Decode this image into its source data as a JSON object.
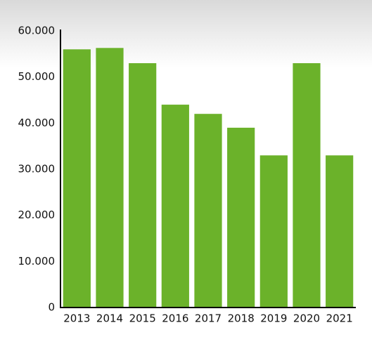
{
  "chart_data": {
    "type": "bar",
    "categories": [
      "2013",
      "2014",
      "2015",
      "2016",
      "2017",
      "2018",
      "2019",
      "2020",
      "2021"
    ],
    "values": [
      56000,
      56300,
      53000,
      44000,
      42000,
      39000,
      33000,
      53000,
      33000
    ],
    "color": "#6bb22a",
    "ylim": [
      0,
      60000
    ],
    "yticks": [
      0,
      {
        "value": 10000,
        "label": "10.000"
      },
      {
        "value": 20000,
        "label": "20.000"
      },
      {
        "value": 30000,
        "label": "30.000"
      },
      {
        "value": 40000,
        "label": "40.000"
      },
      {
        "value": 50000,
        "label": "50.000"
      },
      {
        "value": 60000,
        "label": "60.000"
      }
    ],
    "grid": false
  }
}
